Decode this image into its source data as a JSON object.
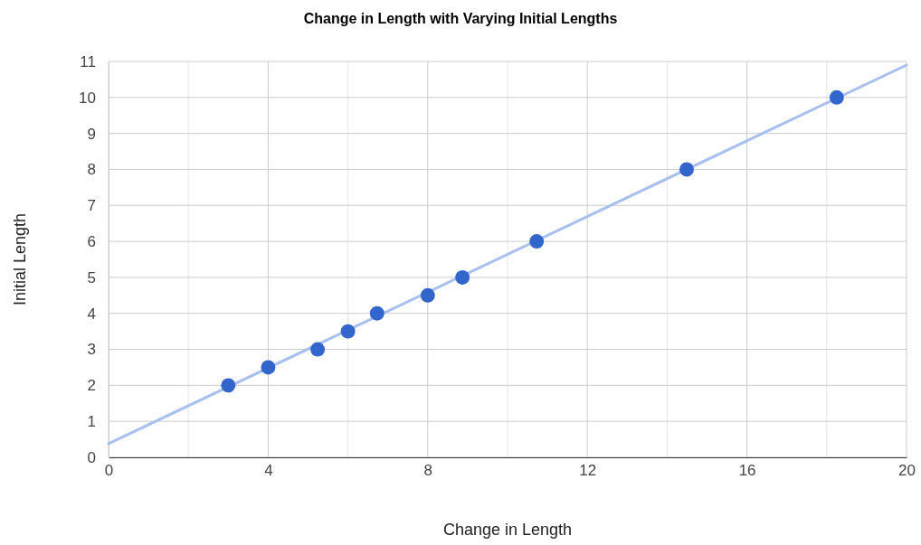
{
  "chart_data": {
    "type": "scatter",
    "title": "Change in Length with Varying Initial Lengths",
    "xlabel": "Change in Length",
    "ylabel": "Initial Length",
    "xlim": [
      0,
      20
    ],
    "ylim": [
      0,
      11
    ],
    "xticks": [
      0,
      {
        "value": 2,
        "label": null
      },
      4,
      {
        "value": 6,
        "label": null
      },
      8,
      {
        "value": 10,
        "label": null
      },
      12,
      {
        "value": 14,
        "label": null
      },
      16,
      {
        "value": 18,
        "label": null
      },
      20
    ],
    "yticks": [
      0,
      1,
      2,
      3,
      4,
      5,
      6,
      7,
      8,
      9,
      10,
      11
    ],
    "grid": true,
    "series": [
      {
        "type": "line",
        "color": "#a8c0f0",
        "x": [
          0,
          20
        ],
        "values": [
          0.38,
          10.9
        ]
      },
      {
        "marker": "circle",
        "color": "#3366cc",
        "x": [
          3.0,
          4.0,
          5.24,
          6.0,
          6.73,
          8.0,
          8.87,
          10.73,
          14.49,
          18.25
        ],
        "values": [
          2,
          2.5,
          3,
          3.5,
          4,
          4.5,
          5,
          6,
          8,
          10
        ]
      }
    ]
  }
}
